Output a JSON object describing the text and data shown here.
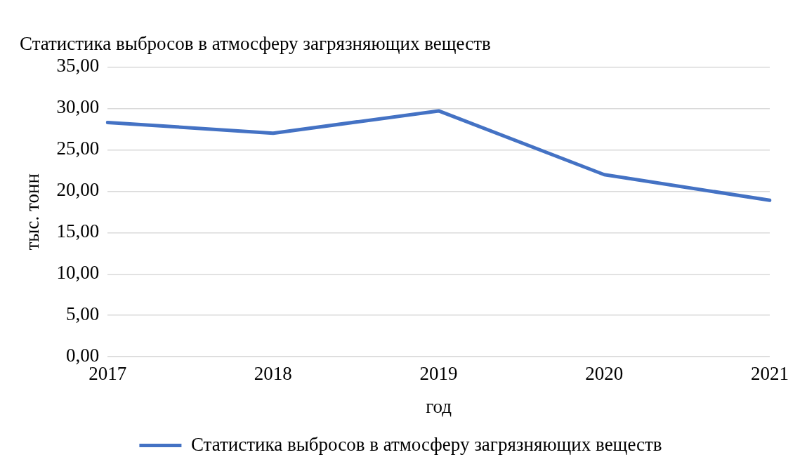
{
  "chart_data": {
    "type": "line",
    "title": "Статистика выбросов в атмосферу загрязняющих веществ",
    "xlabel": "год",
    "ylabel": "тыс. тонн",
    "categories": [
      "2017",
      "2018",
      "2019",
      "2020",
      "2021"
    ],
    "series": [
      {
        "name": "Статистика выбросов в атмосферу загрязняющих веществ",
        "color": "#4472c4",
        "values": [
          28.3,
          27.0,
          29.7,
          22.0,
          18.9
        ]
      }
    ],
    "ylim": [
      0,
      35
    ],
    "yticks": [
      {
        "value": 0,
        "label": "0,00"
      },
      {
        "value": 5,
        "label": "5,00"
      },
      {
        "value": 10,
        "label": "10,00"
      },
      {
        "value": 15,
        "label": "15,00"
      },
      {
        "value": 20,
        "label": "20,00"
      },
      {
        "value": 25,
        "label": "25,00"
      },
      {
        "value": 30,
        "label": "30,00"
      },
      {
        "value": 35,
        "label": "35,00"
      }
    ],
    "grid": "y",
    "legend": "bottom",
    "marker": "none",
    "line_style": "solid"
  }
}
